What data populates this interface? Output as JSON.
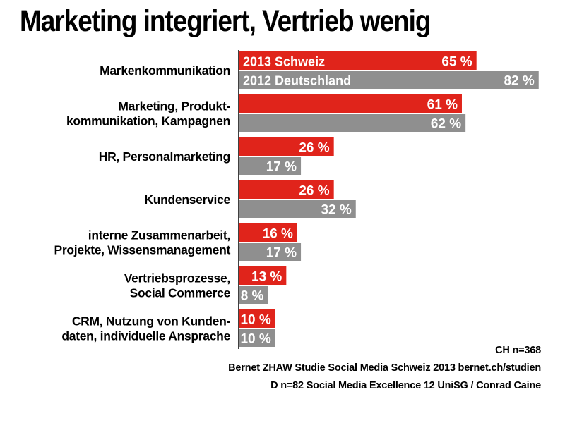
{
  "title": "Marketing integriert, Vertrieb wenig",
  "chart_data": {
    "type": "bar",
    "orientation": "horizontal",
    "categories": [
      [
        "Markenkommunikation"
      ],
      [
        "Marketing, Produkt-",
        "kommunikation, Kampagnen"
      ],
      [
        "HR, Personalmarketing"
      ],
      [
        "Kundenservice"
      ],
      [
        "interne Zusammenarbeit,",
        "Projekte, Wissensmanagement"
      ],
      [
        "Vertriebsprozesse,",
        "Social Commerce"
      ],
      [
        "CRM, Nutzung von Kunden-",
        "daten, individuelle Ansprache"
      ]
    ],
    "series": [
      {
        "name": "2013 Schweiz",
        "color": "#e0241b",
        "values": [
          65,
          61,
          26,
          26,
          16,
          13,
          10
        ],
        "labels": [
          "65 %",
          "61 %",
          "26 %",
          "26 %",
          "16 %",
          "13 %",
          "10 %"
        ]
      },
      {
        "name": "2012 Deutschland",
        "color": "#8f8f8f",
        "values": [
          82,
          62,
          17,
          32,
          17,
          8,
          10
        ],
        "labels": [
          "82 %",
          "62 %",
          "17 %",
          "32 %",
          "17 %",
          "8 %",
          "10 %"
        ]
      }
    ],
    "xlim": [
      0,
      100
    ],
    "grid": false,
    "legend": "inside first bars"
  },
  "footnotes": [
    "CH n=368",
    "Bernet ZHAW Studie Social Media Schweiz 2013 bernet.ch/studien",
    "D n=82 Social Media Excellence 12 UniSG / Conrad Caine"
  ]
}
